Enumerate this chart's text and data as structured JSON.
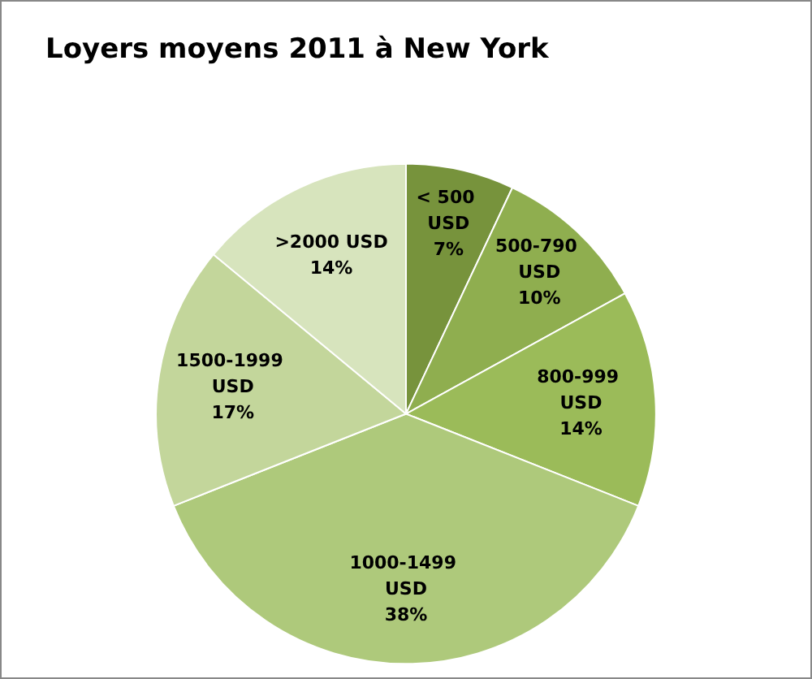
{
  "chart_data": {
    "type": "pie",
    "title": "Loyers moyens 2011 à New York",
    "categories": [
      "< 500 USD",
      "500-790 USD",
      "800-999 USD",
      "1000-1499 USD",
      "1500-1999 USD",
      ">2000 USD"
    ],
    "values": [
      7,
      10,
      14,
      38,
      17,
      14
    ],
    "colors": [
      "#77933c",
      "#8fae4f",
      "#9bbb59",
      "#aec97b",
      "#c3d69b",
      "#d7e4bd"
    ],
    "value_labels": [
      "7%",
      "10%",
      "14%",
      "38%",
      "17%",
      "14%"
    ],
    "legend": false
  }
}
